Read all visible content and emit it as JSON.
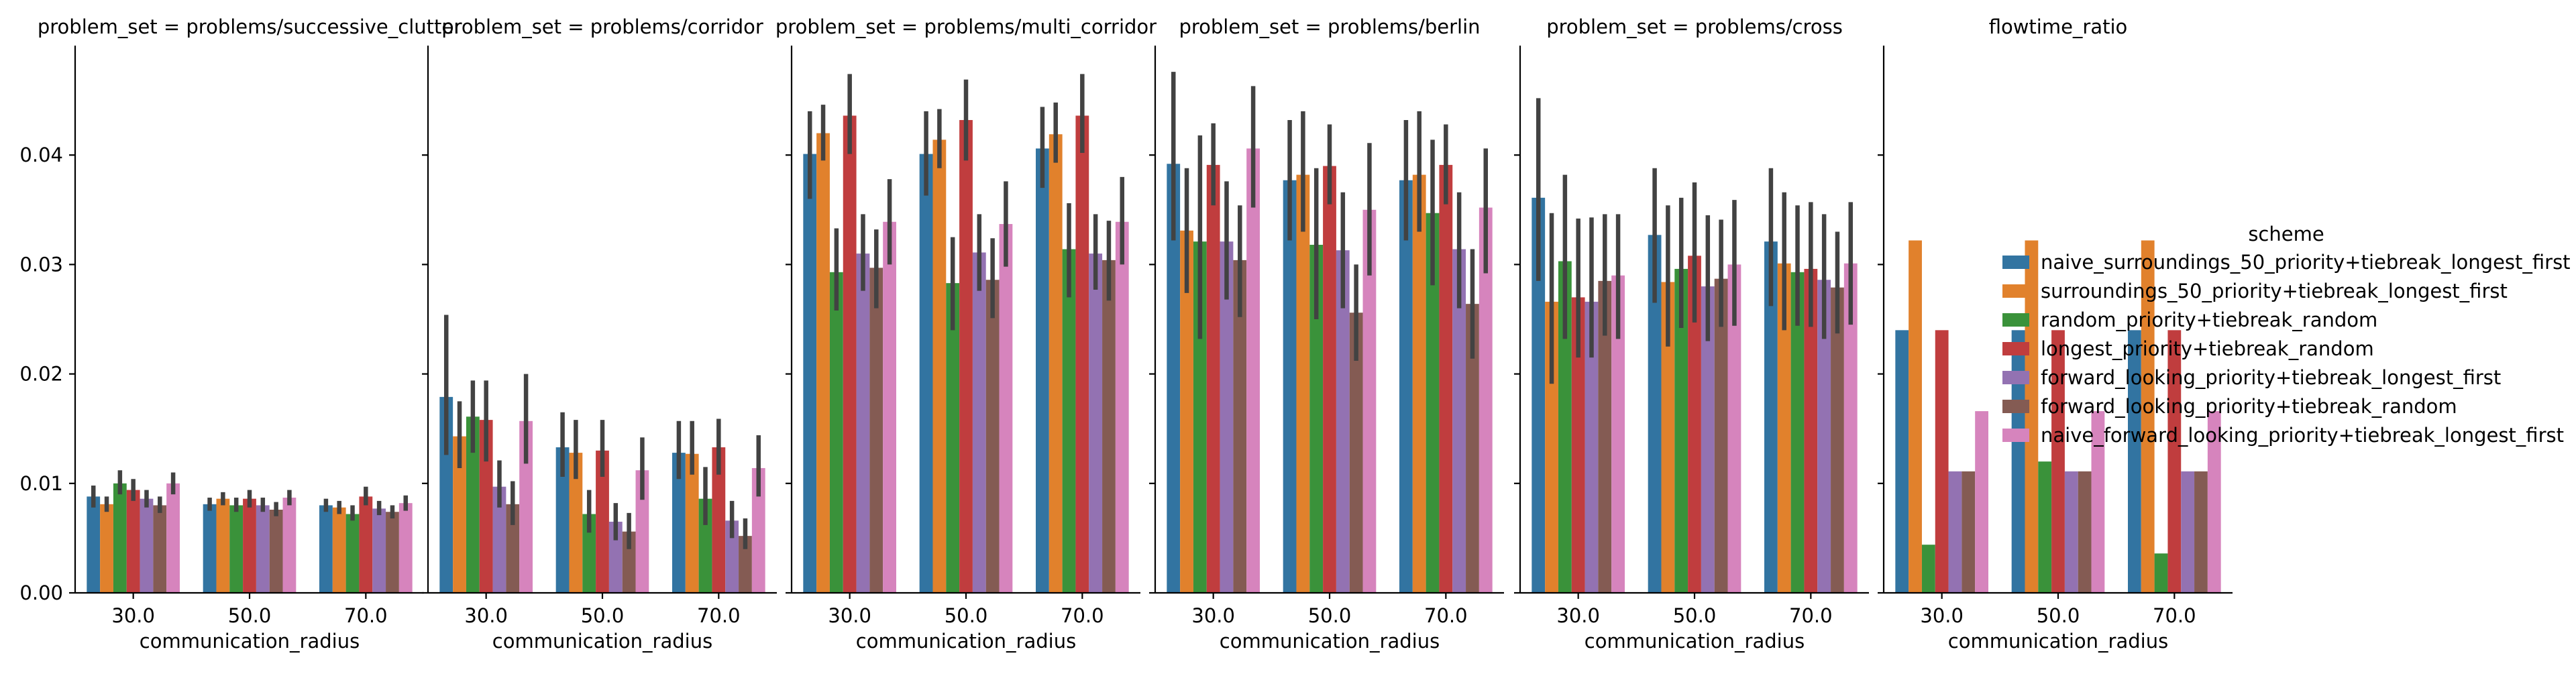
{
  "chart_data": {
    "type": "bar",
    "facet_variable": "problem_set",
    "xlabel": "communication_radius",
    "ylabel": "",
    "categories": [
      "30.0",
      "50.0",
      "70.0"
    ],
    "ylim": [
      0,
      0.05
    ],
    "yticks": [
      "0.00",
      "0.01",
      "0.02",
      "0.03",
      "0.04"
    ],
    "sharey": true,
    "grid": false,
    "legend": {
      "title": "scheme",
      "placement": "right",
      "entries": [
        "naive_surroundings_50_priority+tiebreak_longest_first",
        "surroundings_50_priority+tiebreak_longest_first",
        "random_priority+tiebreak_random",
        "longest_priority+tiebreak_random",
        "forward_looking_priority+tiebreak_longest_first",
        "forward_looking_priority+tiebreak_random",
        "naive_forward_looking_priority+tiebreak_longest_first"
      ]
    },
    "colors": [
      "#3274a1",
      "#e1812c",
      "#3a923a",
      "#c03d3e",
      "#9372b2",
      "#845b53",
      "#d684bd"
    ],
    "facets": [
      {
        "title": "problem_set = problems/successive_clutter",
        "values": [
          [
            0.0088,
            0.0081,
            0.008
          ],
          [
            0.0081,
            0.0086,
            0.0078
          ],
          [
            0.01,
            0.008,
            0.0072
          ],
          [
            0.0094,
            0.0086,
            0.0088
          ],
          [
            0.0086,
            0.008,
            0.0077
          ],
          [
            0.008,
            0.0076,
            0.0074
          ],
          [
            0.01,
            0.0087,
            0.0082
          ]
        ],
        "err_low": [
          [
            0.0078,
            0.0075,
            0.0074
          ],
          [
            0.0074,
            0.008,
            0.0072
          ],
          [
            0.009,
            0.0074,
            0.0066
          ],
          [
            0.0084,
            0.0078,
            0.008
          ],
          [
            0.0078,
            0.0074,
            0.0071
          ],
          [
            0.0073,
            0.007,
            0.0068
          ],
          [
            0.009,
            0.008,
            0.0075
          ]
        ],
        "err_high": [
          [
            0.0098,
            0.0087,
            0.0086
          ],
          [
            0.0088,
            0.0092,
            0.0084
          ],
          [
            0.0112,
            0.0087,
            0.008
          ],
          [
            0.0104,
            0.0094,
            0.0097
          ],
          [
            0.0094,
            0.0087,
            0.0084
          ],
          [
            0.0088,
            0.0083,
            0.008
          ],
          [
            0.011,
            0.0094,
            0.0089
          ]
        ]
      },
      {
        "title": "problem_set = problems/corridor",
        "values": [
          [
            0.0179,
            0.0133,
            0.0128
          ],
          [
            0.0143,
            0.0128,
            0.0127
          ],
          [
            0.0161,
            0.0072,
            0.0086
          ],
          [
            0.0158,
            0.013,
            0.0133
          ],
          [
            0.0097,
            0.0065,
            0.0066
          ],
          [
            0.0081,
            0.0056,
            0.0052
          ],
          [
            0.0157,
            0.0112,
            0.0114
          ]
        ],
        "err_low": [
          [
            0.0126,
            0.0106,
            0.0104
          ],
          [
            0.0114,
            0.0104,
            0.0108
          ],
          [
            0.0128,
            0.0055,
            0.0062
          ],
          [
            0.012,
            0.0106,
            0.0108
          ],
          [
            0.0078,
            0.0048,
            0.005
          ],
          [
            0.0062,
            0.004,
            0.004
          ],
          [
            0.0118,
            0.0085,
            0.0088
          ]
        ],
        "err_high": [
          [
            0.0254,
            0.0165,
            0.0157
          ],
          [
            0.0175,
            0.0158,
            0.0157
          ],
          [
            0.0194,
            0.0094,
            0.0115
          ],
          [
            0.0194,
            0.0158,
            0.0159
          ],
          [
            0.0121,
            0.0082,
            0.0084
          ],
          [
            0.0102,
            0.0073,
            0.0068
          ],
          [
            0.02,
            0.0142,
            0.0144
          ]
        ]
      },
      {
        "title": "problem_set = problems/multi_corridor",
        "values": [
          [
            0.0401,
            0.0401,
            0.0406
          ],
          [
            0.042,
            0.0414,
            0.0419
          ],
          [
            0.0293,
            0.0283,
            0.0314
          ],
          [
            0.0436,
            0.0432,
            0.0436
          ],
          [
            0.031,
            0.0311,
            0.031
          ],
          [
            0.0297,
            0.0286,
            0.0304
          ],
          [
            0.0339,
            0.0337,
            0.0339
          ]
        ],
        "err_low": [
          [
            0.036,
            0.0363,
            0.037
          ],
          [
            0.0395,
            0.0388,
            0.0393
          ],
          [
            0.0258,
            0.024,
            0.027
          ],
          [
            0.0401,
            0.0395,
            0.0402
          ],
          [
            0.0276,
            0.0276,
            0.0277
          ],
          [
            0.026,
            0.0251,
            0.0267
          ],
          [
            0.03,
            0.0298,
            0.03
          ]
        ],
        "err_high": [
          [
            0.044,
            0.044,
            0.0444
          ],
          [
            0.0446,
            0.0442,
            0.0448
          ],
          [
            0.0333,
            0.0325,
            0.0356
          ],
          [
            0.0474,
            0.0469,
            0.0474
          ],
          [
            0.0346,
            0.0346,
            0.0346
          ],
          [
            0.0332,
            0.0324,
            0.034
          ],
          [
            0.0378,
            0.0376,
            0.038
          ]
        ]
      },
      {
        "title": "problem_set = problems/berlin",
        "values": [
          [
            0.0392,
            0.0377,
            0.0377
          ],
          [
            0.0331,
            0.0382,
            0.0382
          ],
          [
            0.0321,
            0.0318,
            0.0347
          ],
          [
            0.0391,
            0.039,
            0.0391
          ],
          [
            0.0321,
            0.0313,
            0.0314
          ],
          [
            0.0304,
            0.0256,
            0.0264
          ],
          [
            0.0406,
            0.035,
            0.0352
          ]
        ],
        "err_low": [
          [
            0.0322,
            0.0322,
            0.0322
          ],
          [
            0.0274,
            0.033,
            0.033
          ],
          [
            0.0232,
            0.025,
            0.0281
          ],
          [
            0.0354,
            0.0355,
            0.0355
          ],
          [
            0.0268,
            0.026,
            0.026
          ],
          [
            0.0252,
            0.0212,
            0.0214
          ],
          [
            0.0352,
            0.029,
            0.0292
          ]
        ],
        "err_high": [
          [
            0.0476,
            0.0432,
            0.0432
          ],
          [
            0.0388,
            0.044,
            0.044
          ],
          [
            0.0418,
            0.0388,
            0.0414
          ],
          [
            0.0429,
            0.0428,
            0.0428
          ],
          [
            0.0376,
            0.0366,
            0.0366
          ],
          [
            0.0354,
            0.03,
            0.0314
          ],
          [
            0.0463,
            0.0411,
            0.0406
          ]
        ]
      },
      {
        "title": "problem_set = problems/cross",
        "values": [
          [
            0.0361,
            0.0327,
            0.0321
          ],
          [
            0.0266,
            0.0284,
            0.0301
          ],
          [
            0.0303,
            0.0296,
            0.0293
          ],
          [
            0.027,
            0.0308,
            0.0296
          ],
          [
            0.0266,
            0.028,
            0.0286
          ],
          [
            0.0285,
            0.0287,
            0.0279
          ],
          [
            0.029,
            0.03,
            0.0301
          ]
        ],
        "err_low": [
          [
            0.0285,
            0.0265,
            0.0262
          ],
          [
            0.0191,
            0.0225,
            0.024
          ],
          [
            0.0232,
            0.0242,
            0.0244
          ],
          [
            0.0215,
            0.0247,
            0.0243
          ],
          [
            0.0215,
            0.023,
            0.0232
          ],
          [
            0.0235,
            0.0243,
            0.0237
          ],
          [
            0.0232,
            0.0244,
            0.0245
          ]
        ],
        "err_high": [
          [
            0.0452,
            0.0388,
            0.0388
          ],
          [
            0.0347,
            0.0354,
            0.0366
          ],
          [
            0.0382,
            0.0361,
            0.0354
          ],
          [
            0.0342,
            0.0375,
            0.0357
          ],
          [
            0.0343,
            0.0345,
            0.0346
          ],
          [
            0.0346,
            0.0341,
            0.033
          ],
          [
            0.0346,
            0.0359,
            0.0357
          ]
        ]
      },
      {
        "title": "flowtime_ratio",
        "values": [
          [
            0.024,
            0.024,
            0.024
          ],
          [
            0.0322,
            0.0322,
            0.0322
          ],
          [
            0.0044,
            0.012,
            0.0036
          ],
          [
            0.024,
            0.024,
            0.024
          ],
          [
            0.0111,
            0.0111,
            0.0111
          ],
          [
            0.0111,
            0.0111,
            0.0111
          ],
          [
            0.0166,
            0.0166,
            0.0166
          ]
        ]
      }
    ]
  }
}
